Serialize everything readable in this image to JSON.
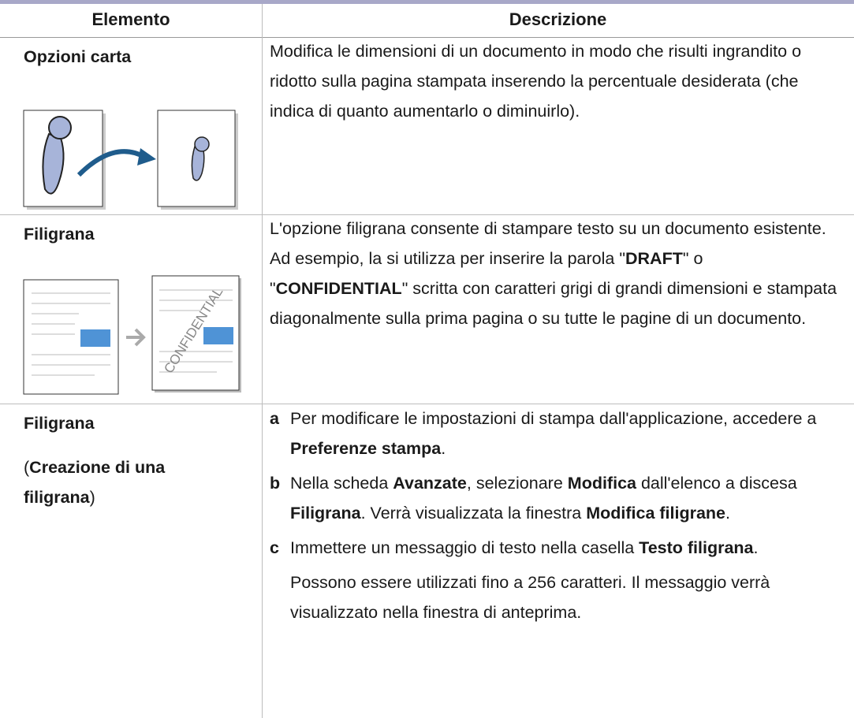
{
  "header": {
    "columns": [
      "Elemento",
      "Descrizione"
    ]
  },
  "table": {
    "rows": [
      {
        "item": [
          [
            {
              "text": "Opzioni carta",
              "bold": true
            }
          ]
        ],
        "description": [
          [
            {
              "text": "Modifica le dimensioni di un documento in modo che risulti ingrandito o ridotto sulla pagina stampata inserendo la percentuale desiderata (che indica di quanto aumentarlo o diminuirlo)."
            }
          ]
        ]
      },
      {
        "item": [
          [
            {
              "text": "Filigrana",
              "bold": true
            }
          ]
        ],
        "illustration_text": "CONFIDENTIAL",
        "description": [
          [
            {
              "text": "L'opzione filigrana consente di stampare testo su un documento esistente. Ad esempio, la si utilizza per inserire la parola \""
            },
            {
              "text": "DRAFT",
              "bold": true
            },
            {
              "text": "\" o \""
            },
            {
              "text": "CONFIDENTIAL",
              "bold": true
            },
            {
              "text": "\" scritta con caratteri grigi di grandi dimensioni e stampata diagonalmente sulla prima pagina o su tutte le pagine di un documento."
            }
          ]
        ]
      },
      {
        "item": [
          [
            {
              "text": "Filigrana",
              "bold": true
            }
          ],
          [
            {
              "text": "("
            },
            {
              "text": "Creazione di una filigrana",
              "bold": true
            },
            {
              "text": ")"
            }
          ]
        ],
        "steps": [
          {
            "label": "a",
            "paragraphs": [
              [
                {
                  "text": "Per modificare le impostazioni di stampa dall'applicazione, accedere a "
                },
                {
                  "text": "Preferenze stampa",
                  "bold": true
                },
                {
                  "text": "."
                }
              ]
            ]
          },
          {
            "label": "b",
            "paragraphs": [
              [
                {
                  "text": "Nella scheda "
                },
                {
                  "text": "Avanzate",
                  "bold": true
                },
                {
                  "text": ", selezionare "
                },
                {
                  "text": "Modifica",
                  "bold": true
                },
                {
                  "text": " dall'elenco a discesa "
                },
                {
                  "text": "Filigrana",
                  "bold": true
                },
                {
                  "text": ". Verrà visualizzata la finestra "
                },
                {
                  "text": "Modifica filigrane",
                  "bold": true
                },
                {
                  "text": "."
                }
              ]
            ]
          },
          {
            "label": "c",
            "paragraphs": [
              [
                {
                  "text": "Immettere un messaggio di testo nella casella "
                },
                {
                  "text": "Testo filigrana",
                  "bold": true
                },
                {
                  "text": "."
                }
              ],
              [
                {
                  "text": "Possono essere utilizzati fino a 256 caratteri. Il messaggio verrà visualizzato nella finestra di anteprima."
                }
              ]
            ]
          }
        ]
      }
    ]
  }
}
